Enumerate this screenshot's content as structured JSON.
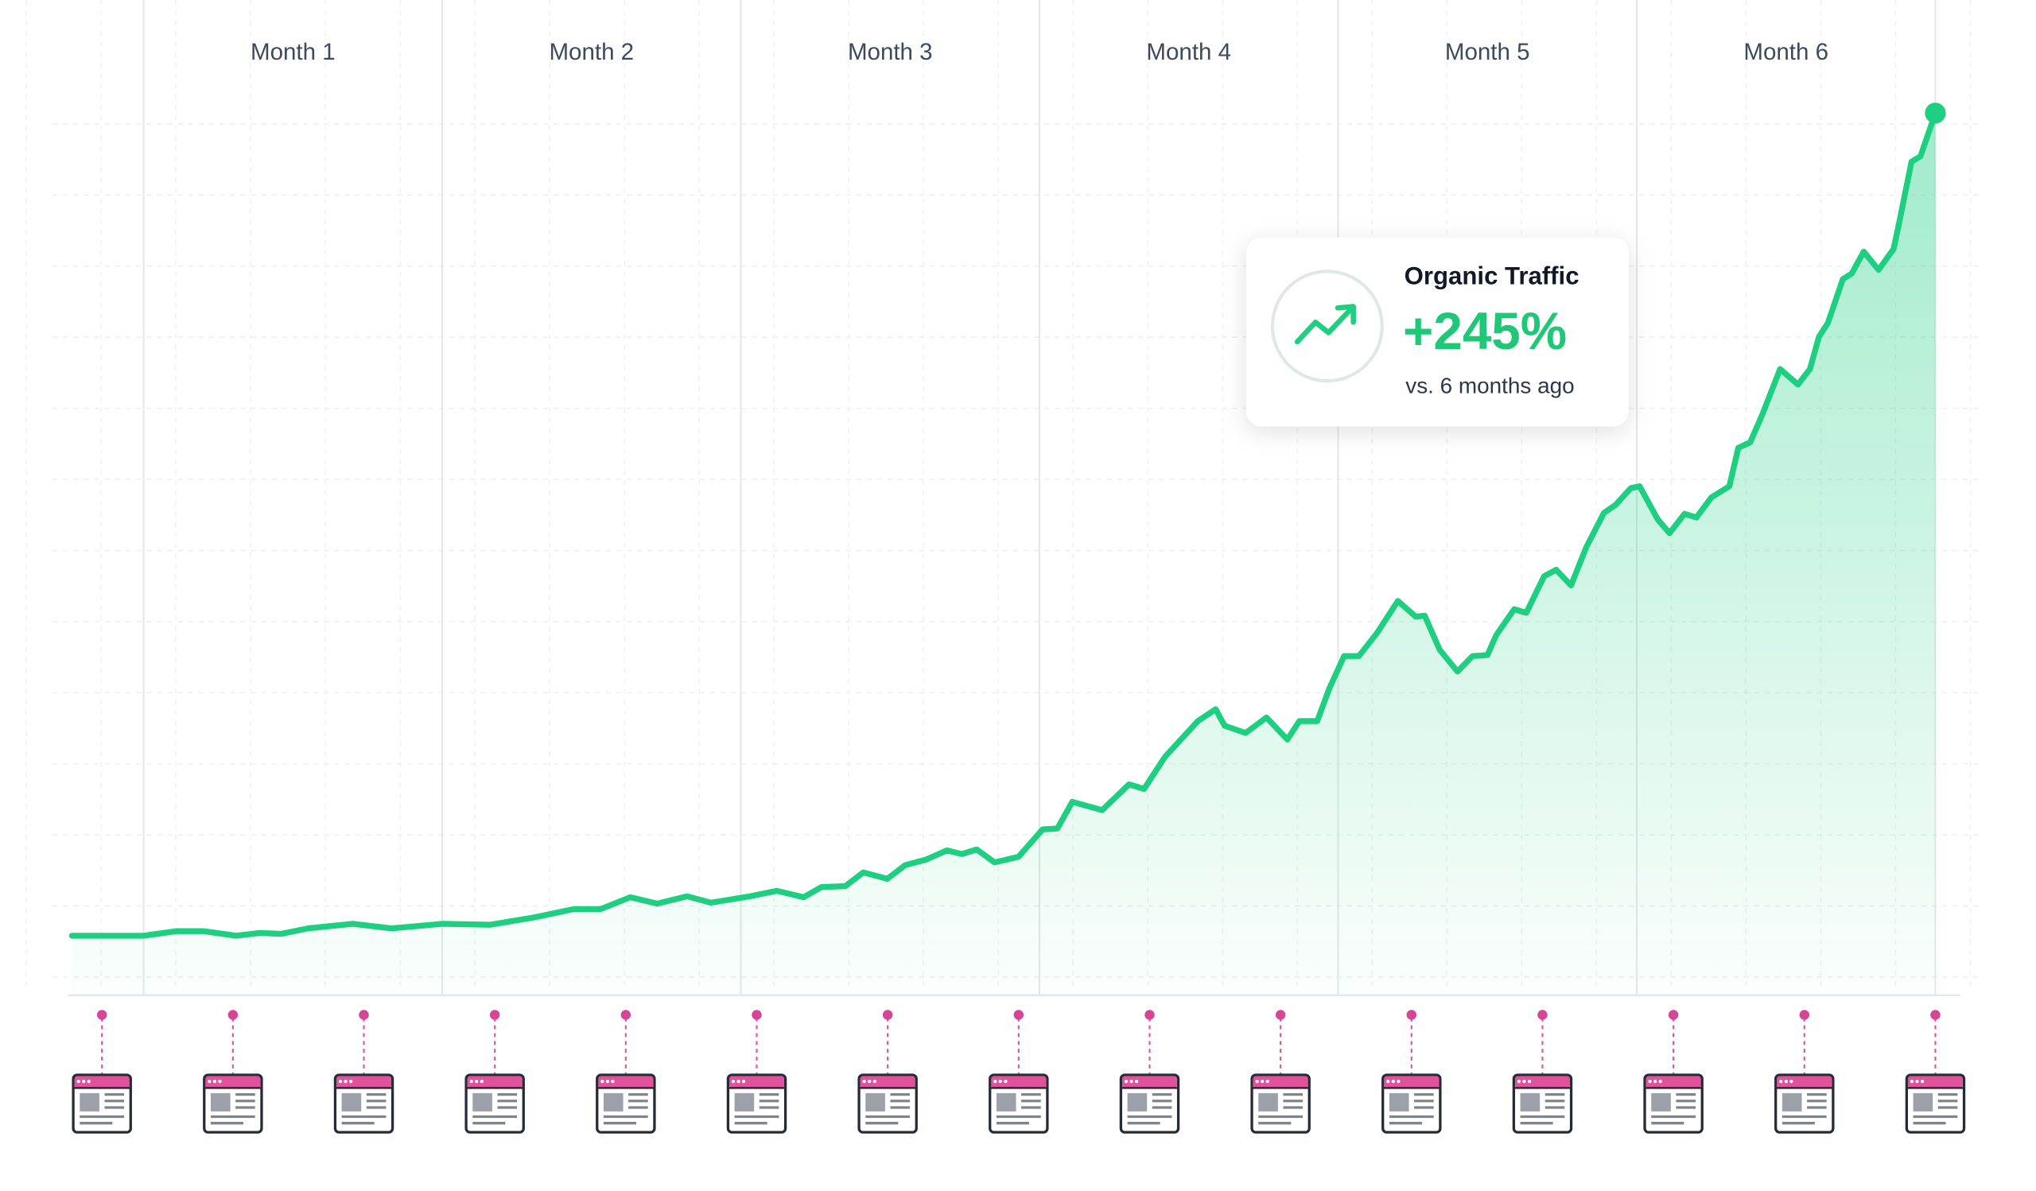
{
  "chart_data": {
    "type": "area",
    "categories": [
      "Month 1",
      "Month 2",
      "Month 3",
      "Month 4",
      "Month 5",
      "Month 6"
    ],
    "x": [
      -0.24,
      0,
      0.11,
      0.2,
      0.31,
      0.39,
      0.46,
      0.55,
      0.7,
      0.83,
      1.0,
      1.16,
      1.31,
      1.44,
      1.53,
      1.63,
      1.72,
      1.82,
      1.9,
      2.03,
      2.12,
      2.21,
      2.27,
      2.35,
      2.41,
      2.49,
      2.55,
      2.62,
      2.69,
      2.74,
      2.79,
      2.85,
      2.93,
      3.01,
      3.06,
      3.11,
      3.21,
      3.3,
      3.35,
      3.42,
      3.53,
      3.59,
      3.62,
      3.69,
      3.76,
      3.83,
      3.87,
      3.93,
      3.97,
      4.02,
      4.07,
      4.13,
      4.2,
      4.26,
      4.29,
      4.34,
      4.4,
      4.45,
      4.5,
      4.53,
      4.59,
      4.63,
      4.69,
      4.73,
      4.78,
      4.83,
      4.89,
      4.93,
      4.98,
      5.01,
      5.07,
      5.11,
      5.16,
      5.2,
      5.25,
      5.31,
      5.34,
      5.38,
      5.42,
      5.48,
      5.54,
      5.58,
      5.61,
      5.64,
      5.69,
      5.72,
      5.76,
      5.81,
      5.86,
      5.88,
      5.92,
      5.95,
      6.0
    ],
    "values": [
      6.5,
      6.5,
      7.0,
      7.0,
      6.5,
      6.8,
      6.7,
      7.3,
      7.8,
      7.3,
      7.8,
      7.7,
      8.5,
      9.4,
      9.4,
      10.7,
      10.0,
      10.8,
      10.1,
      10.8,
      11.4,
      10.7,
      11.8,
      11.9,
      13.4,
      12.7,
      14.2,
      14.8,
      15.8,
      15.4,
      15.9,
      14.5,
      15.1,
      18.1,
      18.2,
      21.1,
      20.2,
      23.0,
      22.5,
      26.0,
      29.9,
      31.2,
      29.4,
      28.6,
      30.3,
      27.9,
      29.9,
      29.9,
      33.4,
      37.0,
      37.0,
      39.5,
      43.0,
      41.3,
      41.4,
      37.7,
      35.3,
      37.0,
      37.1,
      39.3,
      42.1,
      41.7,
      45.7,
      46.4,
      44.7,
      48.8,
      52.6,
      53.5,
      55.3,
      55.5,
      51.9,
      50.4,
      52.5,
      52.1,
      54.3,
      55.5,
      59.7,
      60.3,
      63.3,
      68.3,
      66.6,
      68.3,
      71.8,
      73.3,
      78.1,
      78.7,
      81.1,
      79.1,
      81.4,
      84.4,
      90.9,
      91.5,
      96.2
    ],
    "color": "#1ecf82",
    "xlim": [
      -0.24,
      6.0
    ],
    "ylim": [
      0,
      100
    ],
    "callout": {
      "title": "Organic Traffic",
      "value": "+245%",
      "note": "vs. 6 months ago"
    }
  }
}
